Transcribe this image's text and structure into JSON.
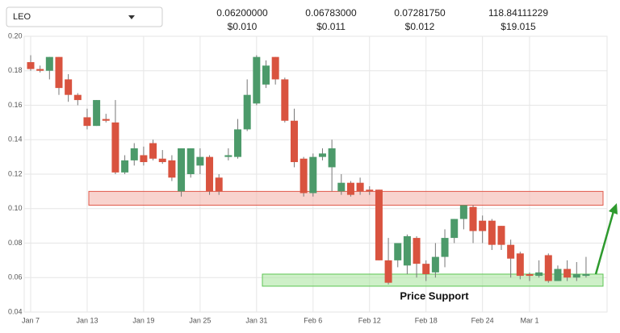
{
  "header": {
    "selector": "LEO",
    "stats": [
      {
        "value": "0.06200000",
        "usd": "$0.010"
      },
      {
        "value": "0.06783000",
        "usd": "$0.011"
      },
      {
        "value": "0.07281750",
        "usd": "$0.012"
      },
      {
        "value": "118.84111229",
        "usd": "$19.015"
      }
    ]
  },
  "chart_data": {
    "type": "candlestick",
    "categories": [
      "Jan 7",
      null,
      null,
      null,
      null,
      null,
      "Jan 13",
      null,
      null,
      null,
      null,
      null,
      "Jan 19",
      null,
      null,
      null,
      null,
      null,
      "Jan 25",
      null,
      null,
      null,
      null,
      null,
      "Jan 31",
      null,
      null,
      null,
      null,
      null,
      "Feb 6",
      null,
      null,
      null,
      null,
      null,
      "Feb 12",
      null,
      null,
      null,
      null,
      null,
      "Feb 18",
      null,
      null,
      null,
      null,
      null,
      "Feb 24",
      null,
      null,
      null,
      null,
      "Mar 1",
      null,
      null,
      null,
      null,
      null,
      null
    ],
    "open": [
      0.185,
      0.181,
      0.18,
      0.188,
      0.175,
      0.166,
      0.153,
      0.148,
      0.152,
      0.15,
      0.121,
      0.128,
      0.131,
      0.138,
      0.129,
      0.128,
      0.11,
      0.12,
      0.125,
      0.13,
      0.118,
      0.13,
      0.13,
      0.146,
      0.161,
      0.172,
      0.188,
      0.175,
      0.151,
      0.129,
      0.109,
      0.13,
      0.124,
      0.11,
      0.115,
      0.115,
      0.111,
      0.111,
      0.07,
      0.07,
      0.067,
      0.083,
      0.068,
      0.063,
      0.072,
      0.083,
      0.094,
      0.101,
      0.093,
      0.093,
      0.09,
      0.079,
      0.074,
      0.062,
      0.061,
      0.073,
      0.058,
      0.065,
      0.06,
      0.061
    ],
    "high": [
      0.189,
      0.183,
      0.188,
      0.188,
      0.178,
      0.167,
      0.158,
      0.163,
      0.155,
      0.163,
      0.131,
      0.138,
      0.136,
      0.14,
      0.134,
      0.131,
      0.135,
      0.135,
      0.135,
      0.131,
      0.12,
      0.135,
      0.152,
      0.175,
      0.189,
      0.186,
      0.188,
      0.176,
      0.158,
      0.13,
      0.132,
      0.135,
      0.14,
      0.12,
      0.116,
      0.118,
      0.113,
      0.111,
      0.083,
      0.08,
      0.085,
      0.084,
      0.07,
      0.08,
      0.088,
      0.094,
      0.102,
      0.102,
      0.096,
      0.094,
      0.09,
      0.082,
      0.075,
      0.063,
      0.07,
      0.074,
      0.067,
      0.07,
      0.069,
      0.072
    ],
    "low": [
      0.18,
      0.179,
      0.175,
      0.166,
      0.162,
      0.16,
      0.146,
      0.148,
      0.15,
      0.12,
      0.12,
      0.125,
      0.125,
      0.128,
      0.126,
      0.116,
      0.107,
      0.118,
      0.12,
      0.108,
      0.108,
      0.128,
      0.129,
      0.145,
      0.16,
      0.17,
      0.172,
      0.15,
      0.124,
      0.107,
      0.107,
      0.128,
      0.11,
      0.108,
      0.107,
      0.108,
      0.108,
      0.07,
      0.056,
      0.066,
      0.062,
      0.06,
      0.058,
      0.06,
      0.066,
      0.08,
      0.088,
      0.08,
      0.08,
      0.076,
      0.076,
      0.06,
      0.059,
      0.058,
      0.06,
      0.057,
      0.058,
      0.058,
      0.058,
      0.06
    ],
    "close": [
      0.181,
      0.18,
      0.188,
      0.17,
      0.166,
      0.163,
      0.148,
      0.163,
      0.151,
      0.121,
      0.128,
      0.135,
      0.127,
      0.129,
      0.127,
      0.118,
      0.135,
      0.135,
      0.13,
      0.11,
      0.11,
      0.131,
      0.146,
      0.166,
      0.188,
      0.183,
      0.175,
      0.151,
      0.127,
      0.109,
      0.13,
      0.132,
      0.135,
      0.115,
      0.108,
      0.11,
      0.11,
      0.07,
      0.057,
      0.08,
      0.084,
      0.068,
      0.062,
      0.072,
      0.083,
      0.094,
      0.102,
      0.087,
      0.087,
      0.079,
      0.079,
      0.071,
      0.061,
      0.061,
      0.063,
      0.058,
      0.065,
      0.06,
      0.062,
      0.062
    ],
    "up_color": "#4c9a6a",
    "down_color": "#d9533f",
    "ylim": [
      0.04,
      0.2
    ],
    "yticks": [
      0.04,
      0.06,
      0.08,
      {
        "value": 0.1,
        "label": "0.10"
      },
      0.12,
      0.14,
      0.16,
      0.18,
      {
        "value": 0.2,
        "label": "0.20"
      }
    ],
    "grid": true,
    "zones": [
      {
        "ylim": [
          0.102,
          0.11
        ],
        "color": "#f4b6ad",
        "stroke": "#e0584a"
      },
      {
        "ylim": [
          0.055,
          0.062
        ],
        "color": "#aee6a3",
        "stroke": "#5cc553"
      }
    ],
    "annotation": "Price Support"
  }
}
